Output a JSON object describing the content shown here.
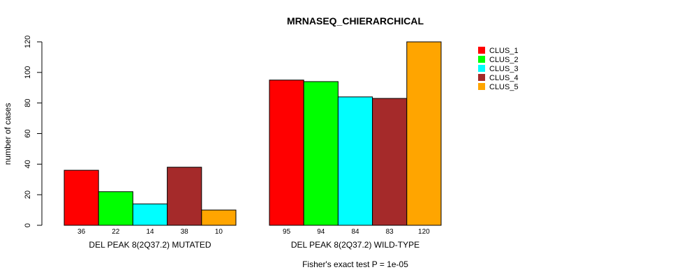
{
  "chart_data": {
    "type": "bar",
    "title": "MRNASEQ_CHIERARCHICAL",
    "ylabel": "number of cases",
    "xlabel": "",
    "footnote": "Fisher's exact test P = 1e-05",
    "ylim": [
      0,
      120
    ],
    "yticks": [
      0,
      20,
      40,
      60,
      80,
      100,
      120
    ],
    "categories": [
      "DEL PEAK  8(2Q37.2) MUTATED",
      "DEL PEAK  8(2Q37.2) WILD-TYPE"
    ],
    "series": [
      {
        "name": "CLUS_1",
        "color": "#ff0000",
        "values": [
          36,
          95
        ]
      },
      {
        "name": "CLUS_2",
        "color": "#00ff00",
        "values": [
          22,
          94
        ]
      },
      {
        "name": "CLUS_3",
        "color": "#00ffff",
        "values": [
          14,
          84
        ]
      },
      {
        "name": "CLUS_4",
        "color": "#a52a2a",
        "values": [
          38,
          83
        ]
      },
      {
        "name": "CLUS_5",
        "color": "#ffa500",
        "values": [
          10,
          120
        ]
      }
    ],
    "legend_position": "top-right"
  }
}
